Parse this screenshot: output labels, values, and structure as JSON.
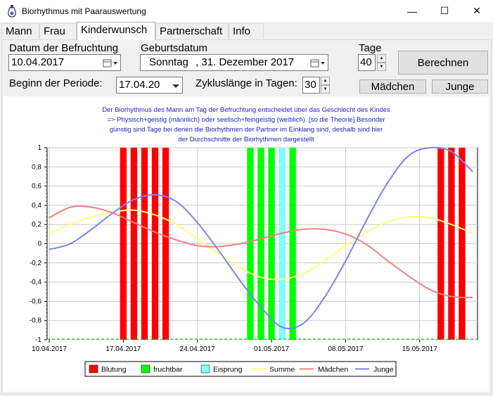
{
  "window": {
    "title": "Biorhythmus mit Paarauswertung",
    "minimize": "—",
    "maximize": "☐",
    "close": "✕"
  },
  "tabs": [
    {
      "label": "Mann",
      "active": false
    },
    {
      "label": "Frau",
      "active": false
    },
    {
      "label": "Kinderwunsch",
      "active": true
    },
    {
      "label": "Partnerschaft",
      "active": false
    },
    {
      "label": "Info",
      "active": false
    }
  ],
  "form": {
    "conception_label": "Datum der Befruchtung",
    "conception_value": "10.04.2017",
    "birth_label": "Geburtsdatum",
    "birth_weekday": "Sonntag",
    "birth_date": ", 31. Dezember 2017",
    "days_label": "Tage",
    "days_value": "40",
    "calc_button": "Berechnen",
    "period_label": "Beginn der Periode:",
    "period_value": "17.04.20",
    "cycle_label": "Zykluslänge in Tagen:",
    "cycle_value": "30",
    "girl_button": "Mädchen",
    "boy_button": "Junge"
  },
  "chart_data": {
    "type": "line",
    "title_lines": [
      "Der Biorhythmus des Mann  am Tag der Befruchtung entscheidet über das Geschlecht des Kindes",
      "=> Physisch+geistig (männlich) oder seelisch+feingeistig (weiblich). [so die Theorie] Besonder",
      "günstig sind Tage bei denen die Biorhythmen der Partner im Einklang sind, deshalb sind hier",
      "der Durchschnitte der Biorhythmen dargestellt"
    ],
    "ylim": [
      -1,
      1
    ],
    "yticks": [
      "1",
      "0,8",
      "0,6",
      "0,4",
      "0,2",
      "0",
      "-0,2",
      "-0,4",
      "-0,6",
      "-0,8",
      "-1"
    ],
    "xlim_days": [
      0,
      40
    ],
    "xticks": [
      {
        "day": 0,
        "label": "10.04.2017"
      },
      {
        "day": 7,
        "label": "17.04.2017"
      },
      {
        "day": 14,
        "label": "24.04.2017"
      },
      {
        "day": 21,
        "label": "01.05.2017"
      },
      {
        "day": 28,
        "label": "08.05.2017"
      },
      {
        "day": 35,
        "label": "15.05.2017"
      }
    ],
    "grid": true,
    "legend_position": "bottom",
    "bars": [
      {
        "name": "Blutung",
        "color": "#ff0000",
        "days": [
          7,
          8,
          9,
          10,
          11,
          37,
          38,
          39
        ]
      },
      {
        "name": "fruchtbar",
        "color": "#00ff00",
        "days": [
          19,
          20,
          21,
          22,
          23
        ]
      },
      {
        "name": "Eisprung",
        "color": "#80ffff",
        "days": [
          22
        ]
      }
    ],
    "series": [
      {
        "name": "Summe",
        "color": "#ffff80",
        "x": [
          0,
          2,
          4,
          6,
          8,
          10,
          12,
          14,
          16,
          18,
          20,
          22,
          24,
          26,
          28,
          30,
          32,
          34,
          36,
          38,
          40
        ],
        "values": [
          0.11,
          0.2,
          0.28,
          0.33,
          0.35,
          0.3,
          0.2,
          0.05,
          -0.1,
          -0.25,
          -0.35,
          -0.37,
          -0.31,
          -0.18,
          -0.02,
          0.12,
          0.23,
          0.28,
          0.27,
          0.2,
          0.11
        ]
      },
      {
        "name": "Mädchen",
        "color": "#f08080",
        "x": [
          0,
          2,
          4,
          6,
          8,
          10,
          12,
          14,
          16,
          18,
          20,
          22,
          24,
          26,
          28,
          30,
          32,
          34,
          36,
          38,
          40
        ],
        "values": [
          0.27,
          0.38,
          0.38,
          0.32,
          0.22,
          0.12,
          0.04,
          -0.02,
          -0.03,
          0.0,
          0.05,
          0.11,
          0.15,
          0.15,
          0.1,
          -0.01,
          -0.18,
          -0.34,
          -0.48,
          -0.55,
          -0.56
        ]
      },
      {
        "name": "Junge",
        "color": "#8080f0",
        "x": [
          0,
          2,
          4,
          6,
          8,
          10,
          12,
          14,
          16,
          18,
          20,
          22,
          24,
          26,
          28,
          30,
          32,
          34,
          36,
          38,
          40
        ],
        "values": [
          -0.06,
          0.0,
          0.15,
          0.32,
          0.46,
          0.51,
          0.44,
          0.22,
          -0.07,
          -0.38,
          -0.66,
          -0.87,
          -0.83,
          -0.56,
          -0.18,
          0.25,
          0.64,
          0.92,
          1.0,
          0.96,
          0.75
        ]
      }
    ],
    "legend": [
      {
        "label": "Blutung",
        "kind": "box",
        "color": "#ff0000"
      },
      {
        "label": "fruchtbar",
        "kind": "box",
        "color": "#00ff00"
      },
      {
        "label": "Eisprung",
        "kind": "box",
        "color": "#80ffff"
      },
      {
        "label": "Summe",
        "kind": "line",
        "color": "#ffff80"
      },
      {
        "label": "Mädchen",
        "kind": "line",
        "color": "#f08080"
      },
      {
        "label": "Junge",
        "kind": "line",
        "color": "#8080f0"
      }
    ]
  }
}
